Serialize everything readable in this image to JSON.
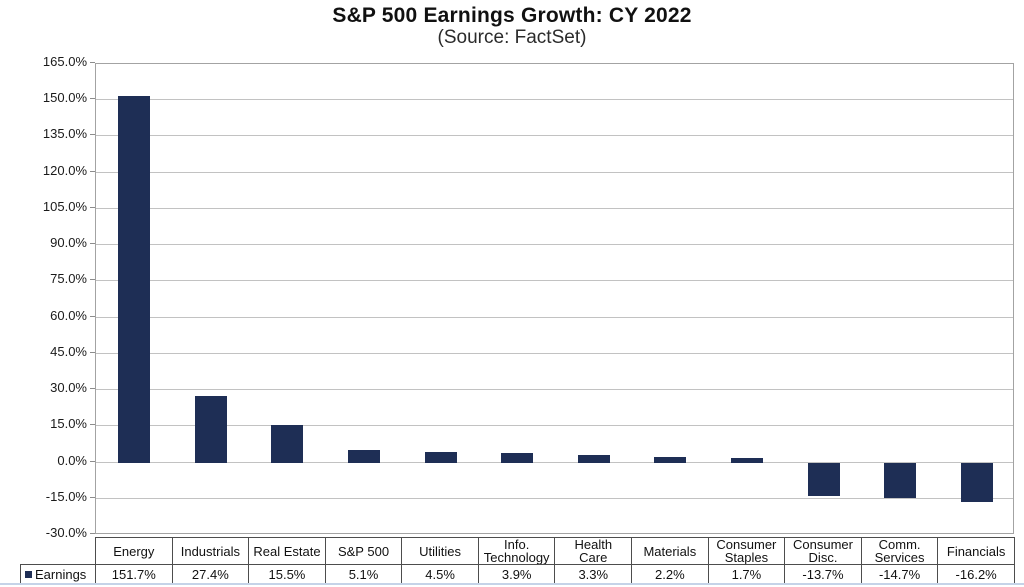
{
  "title": "S&P 500 Earnings Growth: CY 2022",
  "subtitle": "(Source: FactSet)",
  "legend": {
    "label": "Earnings",
    "marker": "square"
  },
  "colors": {
    "bar": "#1e2e55",
    "gridline": "#c2c2c2",
    "plot_border": "#a3a3a3",
    "table_border": "#4d4d4d",
    "bottom_rule": "#c5d3e8",
    "text": "#111111"
  },
  "chart_data": {
    "type": "bar",
    "title": "S&P 500 Earnings Growth: CY 2022",
    "subtitle": "(Source: FactSet)",
    "categories": [
      "Energy",
      "Industrials",
      "Real Estate",
      "S&P 500",
      "Utilities",
      "Info. Technology",
      "Health Care",
      "Materials",
      "Consumer Staples",
      "Consumer Disc.",
      "Comm. Services",
      "Financials"
    ],
    "category_table_labels": [
      "Energy",
      "Industrials",
      "Real Estate",
      "S&P 500",
      "Utilities",
      "Info.\nTechnology",
      "Health\nCare",
      "Materials",
      "Consumer\nStaples",
      "Consumer\nDisc.",
      "Comm.\nServices",
      "Financials"
    ],
    "series": [
      {
        "name": "Earnings",
        "values": [
          151.7,
          27.4,
          15.5,
          5.1,
          4.5,
          3.9,
          3.3,
          2.2,
          1.7,
          -13.7,
          -14.7,
          -16.2
        ]
      }
    ],
    "value_labels": [
      "151.7%",
      "27.4%",
      "15.5%",
      "5.1%",
      "4.5%",
      "3.9%",
      "3.3%",
      "2.2%",
      "1.7%",
      "-13.7%",
      "-14.7%",
      "-16.2%"
    ],
    "ylabel": "",
    "xlabel": "",
    "ylim": [
      -30,
      165
    ],
    "ytick_step": 15,
    "ytick_labels": [
      "165.0%",
      "150.0%",
      "135.0%",
      "120.0%",
      "105.0%",
      "90.0%",
      "75.0%",
      "60.0%",
      "45.0%",
      "30.0%",
      "15.0%",
      "0.0%",
      "-15.0%",
      "-30.0%"
    ],
    "grid": "horizontal",
    "legend_position": "bottom-table",
    "data_table_shown": true
  }
}
